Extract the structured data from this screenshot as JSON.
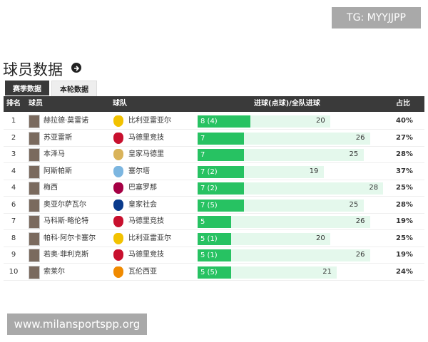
{
  "watermark_top": "TG: MYYJJPP",
  "watermark_bottom": "www.milansportspp.org",
  "header": {
    "title": "球员数据"
  },
  "tabs": [
    "赛季数据",
    "本轮数据"
  ],
  "table": {
    "columns": [
      "排名",
      "球员",
      "球队",
      "进球(点球)/全队进球",
      "占比"
    ],
    "rows": [
      {
        "rank": "1",
        "player": "赫拉德·莫雷诺",
        "team": "比利亚雷亚尔",
        "goals": 8,
        "goals_label": "8 (4)",
        "team_goals": 20,
        "share": "40%"
      },
      {
        "rank": "2",
        "player": "苏亚雷斯",
        "team": "马德里竞技",
        "goals": 7,
        "goals_label": "7",
        "team_goals": 26,
        "share": "27%"
      },
      {
        "rank": "3",
        "player": "本泽马",
        "team": "皇家马德里",
        "goals": 7,
        "goals_label": "7",
        "team_goals": 25,
        "share": "28%"
      },
      {
        "rank": "4",
        "player": "阿斯帕斯",
        "team": "塞尔塔",
        "goals": 7,
        "goals_label": "7 (2)",
        "team_goals": 19,
        "share": "37%"
      },
      {
        "rank": "4",
        "player": "梅西",
        "team": "巴塞罗那",
        "goals": 7,
        "goals_label": "7 (2)",
        "team_goals": 28,
        "share": "25%"
      },
      {
        "rank": "6",
        "player": "奥亚尔萨瓦尔",
        "team": "皇家社会",
        "goals": 7,
        "goals_label": "7 (5)",
        "team_goals": 25,
        "share": "28%"
      },
      {
        "rank": "7",
        "player": "马科斯·略伦特",
        "team": "马德里竞技",
        "goals": 5,
        "goals_label": "5",
        "team_goals": 26,
        "share": "19%"
      },
      {
        "rank": "8",
        "player": "帕科·阿尔卡塞尔",
        "team": "比利亚雷亚尔",
        "goals": 5,
        "goals_label": "5 (1)",
        "team_goals": 20,
        "share": "25%"
      },
      {
        "rank": "9",
        "player": "若奥·菲利克斯",
        "team": "马德里竞技",
        "goals": 5,
        "goals_label": "5 (1)",
        "team_goals": 26,
        "share": "19%"
      },
      {
        "rank": "10",
        "player": "索莱尔",
        "team": "瓦伦西亚",
        "goals": 5,
        "goals_label": "5 (5)",
        "team_goals": 21,
        "share": "24%"
      }
    ]
  }
}
